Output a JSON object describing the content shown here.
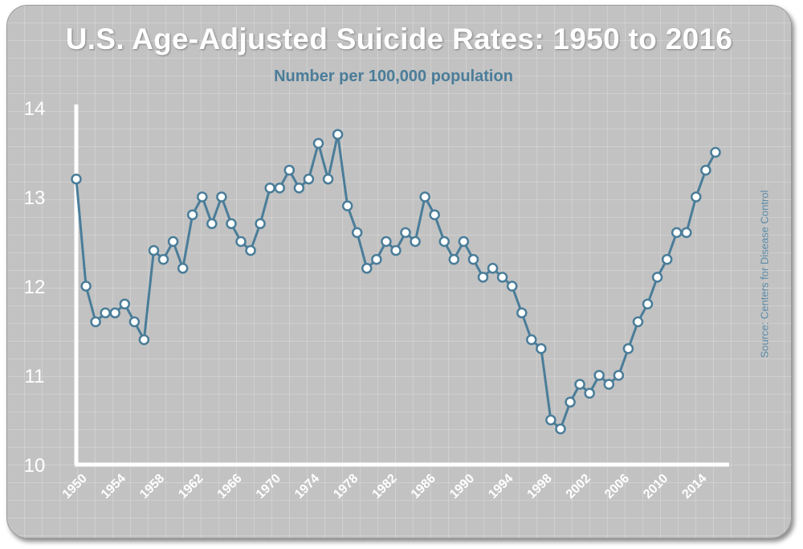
{
  "chart_data": {
    "type": "line",
    "title": "U.S. Age-Adjusted Suicide Rates: 1950 to 2016",
    "subtitle": "Number per 100,000 population",
    "source": "Source: Centers for Disease Control",
    "xlabel": "",
    "ylabel": "",
    "ylim": [
      10,
      14
    ],
    "yticks": [
      "10",
      "11",
      "12",
      "13",
      "14"
    ],
    "xtick_labels": [
      "1950",
      "1954",
      "1958",
      "1962",
      "1966",
      "1970",
      "1974",
      "1978",
      "1982",
      "1986",
      "1990",
      "1994",
      "1998",
      "2002",
      "2006",
      "2010",
      "2014"
    ],
    "x": [
      1950,
      1951,
      1952,
      1953,
      1954,
      1955,
      1956,
      1957,
      1958,
      1959,
      1960,
      1961,
      1962,
      1963,
      1964,
      1965,
      1966,
      1967,
      1968,
      1969,
      1970,
      1971,
      1972,
      1973,
      1974,
      1975,
      1976,
      1977,
      1978,
      1979,
      1980,
      1981,
      1982,
      1983,
      1984,
      1985,
      1986,
      1987,
      1988,
      1989,
      1990,
      1991,
      1992,
      1993,
      1994,
      1995,
      1996,
      1997,
      1998,
      1999,
      2000,
      2001,
      2002,
      2003,
      2004,
      2005,
      2006,
      2007,
      2008,
      2009,
      2010,
      2011,
      2012,
      2013,
      2014,
      2015,
      2016
    ],
    "values": [
      13.2,
      12.0,
      11.6,
      11.7,
      11.7,
      11.8,
      11.6,
      11.4,
      12.4,
      12.3,
      12.5,
      12.2,
      12.8,
      13.0,
      12.7,
      13.0,
      12.7,
      12.5,
      12.4,
      12.7,
      13.1,
      13.1,
      13.3,
      13.1,
      13.2,
      13.6,
      13.2,
      13.7,
      12.9,
      12.6,
      12.2,
      12.3,
      12.5,
      12.4,
      12.6,
      12.5,
      13.0,
      12.8,
      12.5,
      12.3,
      12.5,
      12.3,
      12.1,
      12.2,
      12.1,
      12.0,
      11.7,
      11.4,
      11.3,
      10.5,
      10.4,
      10.7,
      10.9,
      10.8,
      11.0,
      10.9,
      11.0,
      11.3,
      11.6,
      11.8,
      12.1,
      12.3,
      12.6,
      12.6,
      13.0,
      13.3,
      13.5
    ],
    "line_color": "#4a7d99",
    "grid": true
  }
}
